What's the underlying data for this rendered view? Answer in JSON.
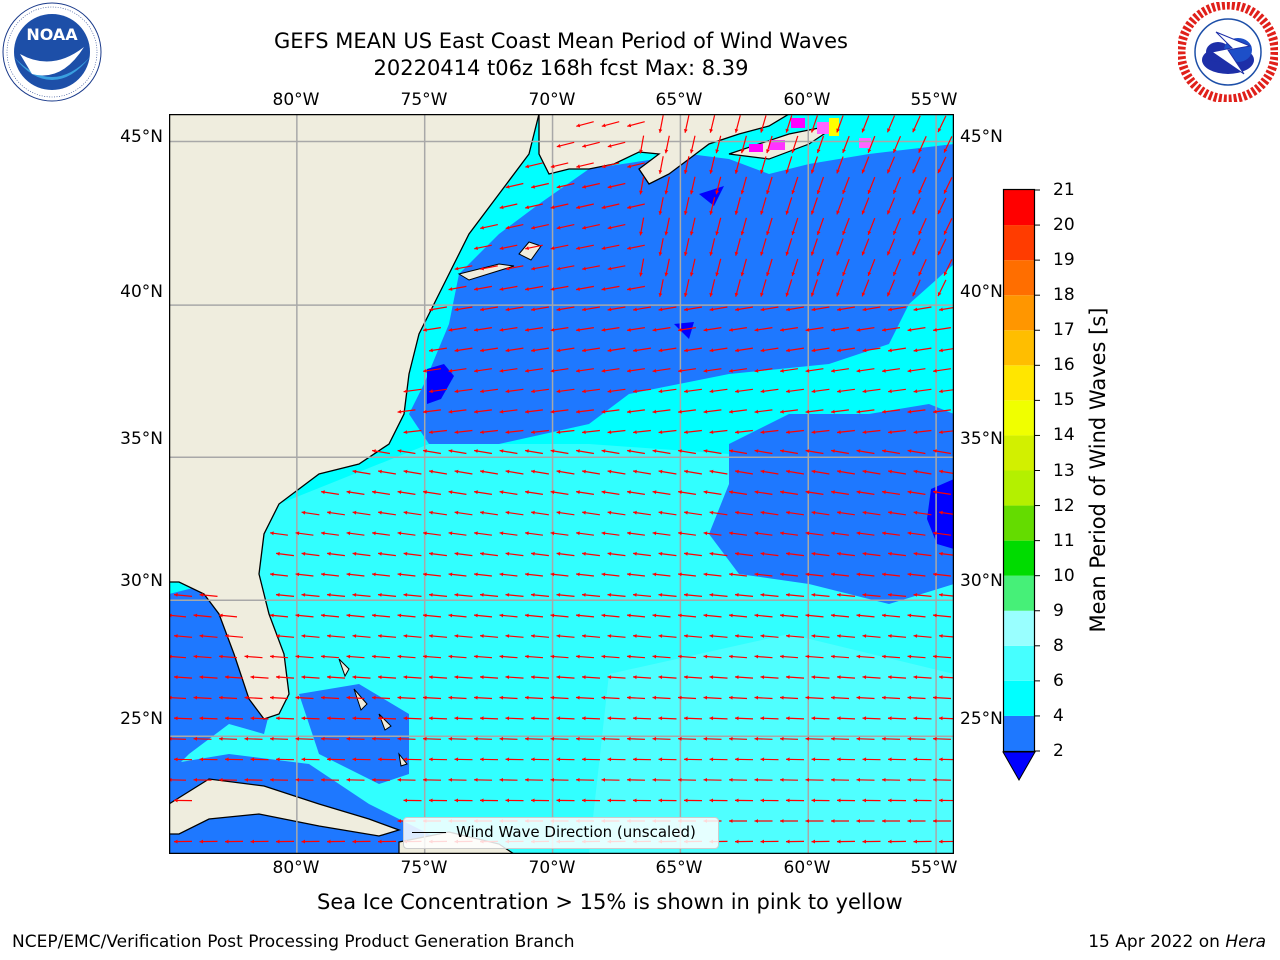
{
  "header": {
    "title_line1": "GEFS MEAN US East Coast Mean Period of Wind Waves",
    "title_line2": "20220414 t06z 168h fcst   Max: 8.39"
  },
  "logos": {
    "left": {
      "name": "noaa-logo",
      "text": "NOAA",
      "ring_text": "NATIONAL OCEANIC AND ATMOSPHERIC ADMINISTRATION · U.S. DEPARTMENT OF COMMERCE"
    },
    "right": {
      "name": "nws-logo",
      "ring_text": "NATIONAL WEATHER SERVICE"
    }
  },
  "map": {
    "lon_labels": [
      "80°W",
      "75°W",
      "70°W",
      "65°W",
      "60°W",
      "55°W"
    ],
    "lat_labels": [
      "45°N",
      "40°N",
      "35°N",
      "30°N",
      "25°N"
    ],
    "lon_values": [
      -80,
      -75,
      -70,
      -65,
      -60,
      -55
    ],
    "lat_values": [
      45,
      40,
      35,
      30,
      25
    ],
    "extent": {
      "lon_min": -85,
      "lon_max": -54.3,
      "lat_min": 20.5,
      "lat_max": 45.8
    },
    "grid": true,
    "arrow_color": "#ff0000",
    "land_color": "#efedde",
    "coastline_color": "#000000"
  },
  "legend": {
    "label": "Wind Wave Direction (unscaled)"
  },
  "colorbar": {
    "title": "Mean Period of Wind Waves [s]",
    "tick_labels": [
      "21",
      "20",
      "19",
      "18",
      "17",
      "16",
      "15",
      "14",
      "13",
      "12",
      "11",
      "10",
      "9",
      "8",
      "6",
      "4",
      "2"
    ],
    "bins": [
      {
        "from": 2,
        "to": 4,
        "color": "#1e78ff"
      },
      {
        "from": 4,
        "to": 6,
        "color": "#00ffff"
      },
      {
        "from": 6,
        "to": 8,
        "color": "#46ffff"
      },
      {
        "from": 8,
        "to": 9,
        "color": "#99ffff"
      },
      {
        "from": 9,
        "to": 10,
        "color": "#46f078"
      },
      {
        "from": 10,
        "to": 11,
        "color": "#00dc00"
      },
      {
        "from": 11,
        "to": 12,
        "color": "#64dc00"
      },
      {
        "from": 12,
        "to": 13,
        "color": "#b4f000"
      },
      {
        "from": 13,
        "to": 14,
        "color": "#d2f000"
      },
      {
        "from": 14,
        "to": 15,
        "color": "#f0ff00"
      },
      {
        "from": 15,
        "to": 16,
        "color": "#ffe600"
      },
      {
        "from": 16,
        "to": 17,
        "color": "#ffbe00"
      },
      {
        "from": 17,
        "to": 18,
        "color": "#ff9600"
      },
      {
        "from": 18,
        "to": 19,
        "color": "#ff6e00"
      },
      {
        "from": 19,
        "to": 20,
        "color": "#ff3c00"
      },
      {
        "from": 20,
        "to": 21,
        "color": "#ff0000"
      }
    ],
    "under_color": "#0000ff"
  },
  "footer": {
    "note": "Sea Ice Concentration > 15% is shown in pink to yellow",
    "credit": "NCEP/EMC/Verification Post Processing Product Generation Branch",
    "date": "15 Apr 2022 on",
    "machine": "Hera"
  }
}
